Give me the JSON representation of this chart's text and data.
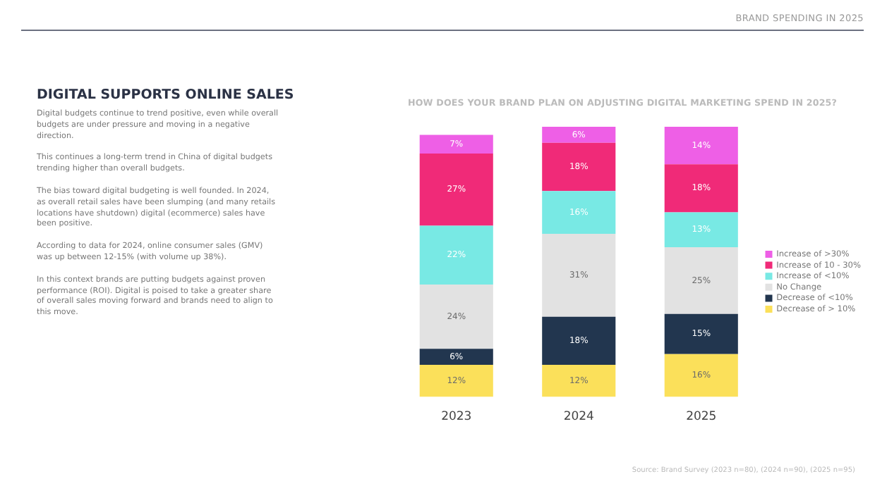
{
  "chart_data": {
    "type": "bar",
    "stacked": true,
    "title": "HOW DOES YOUR BRAND PLAN ON ADJUSTING DIGITAL MARKETING SPEND IN 2025?",
    "categories": [
      "2023",
      "2024",
      "2025"
    ],
    "series": [
      {
        "name": "Decrease of > 10%",
        "color": "#fbe05a",
        "values": [
          12,
          12,
          16
        ],
        "value_labels": [
          "12%",
          "12%",
          "16%"
        ]
      },
      {
        "name": "Decrease of <10%",
        "color": "#22364f",
        "values": [
          6,
          18,
          15
        ],
        "value_labels": [
          "6%",
          "18%",
          "15%"
        ]
      },
      {
        "name": "No Change",
        "color": "#e2e2e2",
        "values": [
          24,
          31,
          25
        ],
        "value_labels": [
          "24%",
          "31%",
          "25%"
        ]
      },
      {
        "name": "Increase of <10%",
        "color": "#78e9e4",
        "values": [
          22,
          16,
          13
        ],
        "value_labels": [
          "22%",
          "16%",
          "13%"
        ]
      },
      {
        "name": "Increase of 10 - 30%",
        "color": "#f02a78",
        "values": [
          27,
          18,
          18
        ],
        "value_labels": [
          "27%",
          "18%",
          "18%"
        ]
      },
      {
        "name": "Increase of >30%",
        "color": "#ee5fe6",
        "values": [
          7,
          6,
          14
        ],
        "value_labels": [
          "7%",
          "6%",
          "14%"
        ]
      }
    ],
    "legend": "right",
    "grid": false,
    "annotations": [
      "BRAND SPENDING IN 2025",
      "DIGITAL SUPPORTS ONLINE SALES",
      "Digital budgets continue to trend positive, even while overall budgets are under pressure and moving in a negative direction.",
      "This continues a long-term trend in China of digital budgets trending higher than overall budgets.",
      "The bias toward digital budgeting is well founded. In 2024, as overall retail sales have been slumping (and many retails locations have shutdown) digital (ecommerce) sales have been positive.",
      "According to data for 2024, online consumer sales (GMV) was up between 12-15% (with volume up 38%).",
      "In this context brands are putting budgets against proven performance (ROI). Digital is poised to take a greater share of overall sales moving forward and brands need to align to this move.",
      "Source: Brand Survey (2023 n=80), (2024 n=90), (2025 n=95)"
    ]
  }
}
